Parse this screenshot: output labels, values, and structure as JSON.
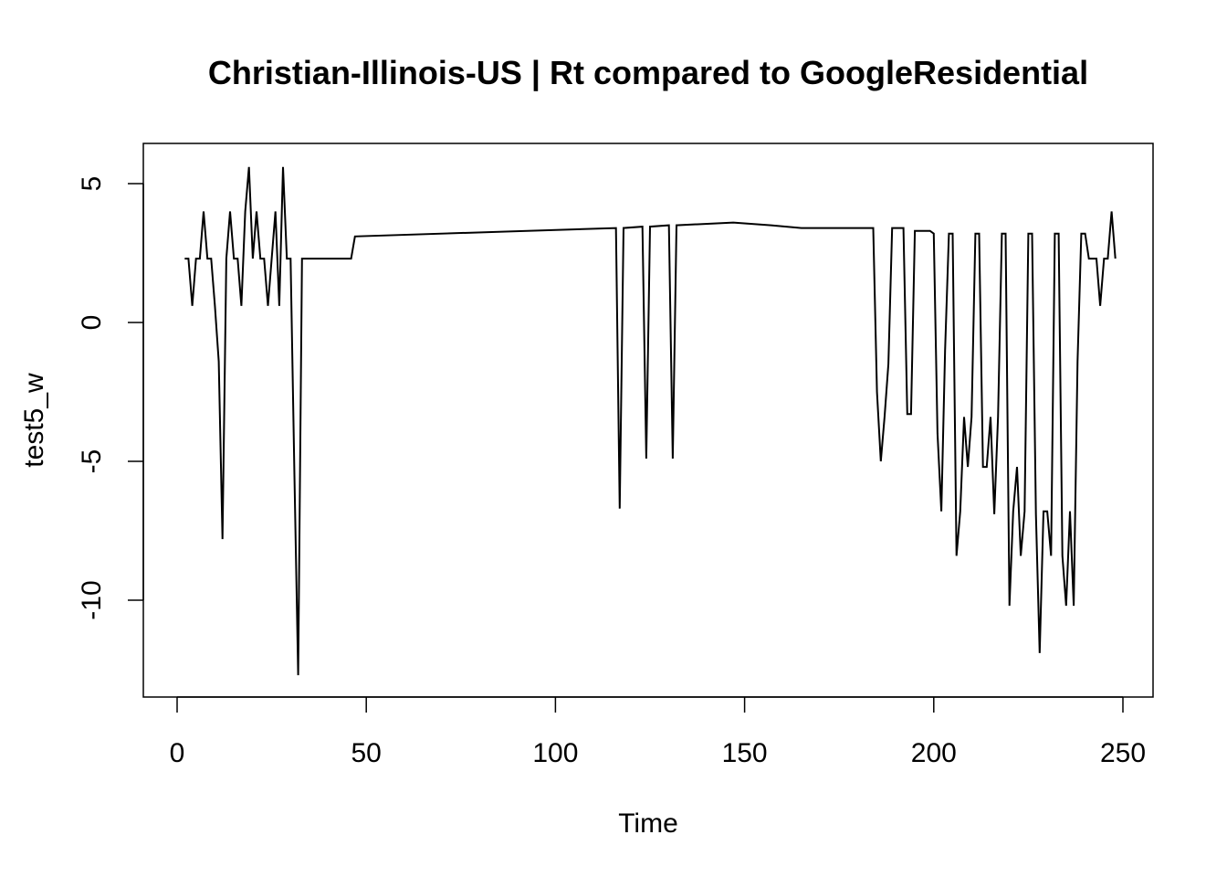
{
  "chart_data": {
    "type": "line",
    "title": "Christian-Illinois-US | Rt compared to GoogleResidential",
    "xlabel": "Time",
    "ylabel": "test5_w",
    "xlim": [
      0,
      250
    ],
    "ylim": [
      -12.7,
      5.7
    ],
    "xticks": [
      0,
      50,
      100,
      150,
      200,
      250
    ],
    "yticks": [
      5,
      0,
      -5,
      -10
    ],
    "grid": false,
    "legend": "none",
    "line_color": "#000000",
    "series": [
      {
        "points": [
          [
            2,
            2.3
          ],
          [
            3,
            2.3
          ],
          [
            4,
            0.6
          ],
          [
            5,
            2.3
          ],
          [
            6,
            2.3
          ],
          [
            7,
            4.0
          ],
          [
            8,
            2.3
          ],
          [
            9,
            2.3
          ],
          [
            10,
            0.6
          ],
          [
            11,
            -1.4
          ],
          [
            12,
            -7.8
          ],
          [
            13,
            2.3
          ],
          [
            14,
            4.0
          ],
          [
            15,
            2.3
          ],
          [
            16,
            2.3
          ],
          [
            17,
            0.6
          ],
          [
            18,
            4.0
          ],
          [
            19,
            5.6
          ],
          [
            20,
            2.3
          ],
          [
            21,
            4.0
          ],
          [
            22,
            2.3
          ],
          [
            23,
            2.3
          ],
          [
            24,
            0.6
          ],
          [
            25,
            2.3
          ],
          [
            26,
            4.0
          ],
          [
            27,
            0.6
          ],
          [
            28,
            5.6
          ],
          [
            29,
            2.3
          ],
          [
            30,
            2.3
          ],
          [
            31,
            -5.5
          ],
          [
            32,
            -12.7
          ],
          [
            33,
            2.3
          ],
          [
            46,
            2.3
          ],
          [
            47,
            3.1
          ],
          [
            116,
            3.4
          ],
          [
            117,
            -6.7
          ],
          [
            118,
            3.4
          ],
          [
            123,
            3.45
          ],
          [
            124,
            -4.9
          ],
          [
            125,
            3.45
          ],
          [
            130,
            3.5
          ],
          [
            131,
            -4.9
          ],
          [
            132,
            3.5
          ],
          [
            147,
            3.6
          ],
          [
            157,
            3.5
          ],
          [
            165,
            3.4
          ],
          [
            184,
            3.4
          ],
          [
            185,
            -2.5
          ],
          [
            186,
            -5.0
          ],
          [
            187,
            -3.4
          ],
          [
            188,
            -1.5
          ],
          [
            189,
            3.4
          ],
          [
            192,
            3.4
          ],
          [
            193,
            -3.3
          ],
          [
            194,
            -3.3
          ],
          [
            195,
            3.3
          ],
          [
            199,
            3.3
          ],
          [
            200,
            3.2
          ],
          [
            201,
            -4.0
          ],
          [
            202,
            -6.8
          ],
          [
            203,
            -1.0
          ],
          [
            204,
            3.2
          ],
          [
            205,
            3.2
          ],
          [
            206,
            -8.4
          ],
          [
            207,
            -6.8
          ],
          [
            208,
            -3.4
          ],
          [
            209,
            -5.2
          ],
          [
            210,
            -3.4
          ],
          [
            211,
            3.2
          ],
          [
            212,
            3.2
          ],
          [
            213,
            -5.2
          ],
          [
            214,
            -5.2
          ],
          [
            215,
            -3.4
          ],
          [
            216,
            -6.9
          ],
          [
            217,
            -3.4
          ],
          [
            218,
            3.2
          ],
          [
            219,
            3.2
          ],
          [
            220,
            -10.2
          ],
          [
            221,
            -6.8
          ],
          [
            222,
            -5.2
          ],
          [
            223,
            -8.4
          ],
          [
            224,
            -6.8
          ],
          [
            225,
            3.2
          ],
          [
            226,
            3.2
          ],
          [
            227,
            -6.9
          ],
          [
            228,
            -11.9
          ],
          [
            229,
            -6.8
          ],
          [
            230,
            -6.8
          ],
          [
            231,
            -8.4
          ],
          [
            232,
            3.2
          ],
          [
            233,
            3.2
          ],
          [
            234,
            -8.4
          ],
          [
            235,
            -10.2
          ],
          [
            236,
            -6.8
          ],
          [
            237,
            -10.2
          ],
          [
            238,
            -1.4
          ],
          [
            239,
            3.2
          ],
          [
            240,
            3.2
          ],
          [
            241,
            2.3
          ],
          [
            242,
            2.3
          ],
          [
            243,
            2.3
          ],
          [
            244,
            0.6
          ],
          [
            245,
            2.3
          ],
          [
            246,
            2.3
          ],
          [
            247,
            4.0
          ],
          [
            248,
            2.3
          ]
        ]
      }
    ]
  }
}
